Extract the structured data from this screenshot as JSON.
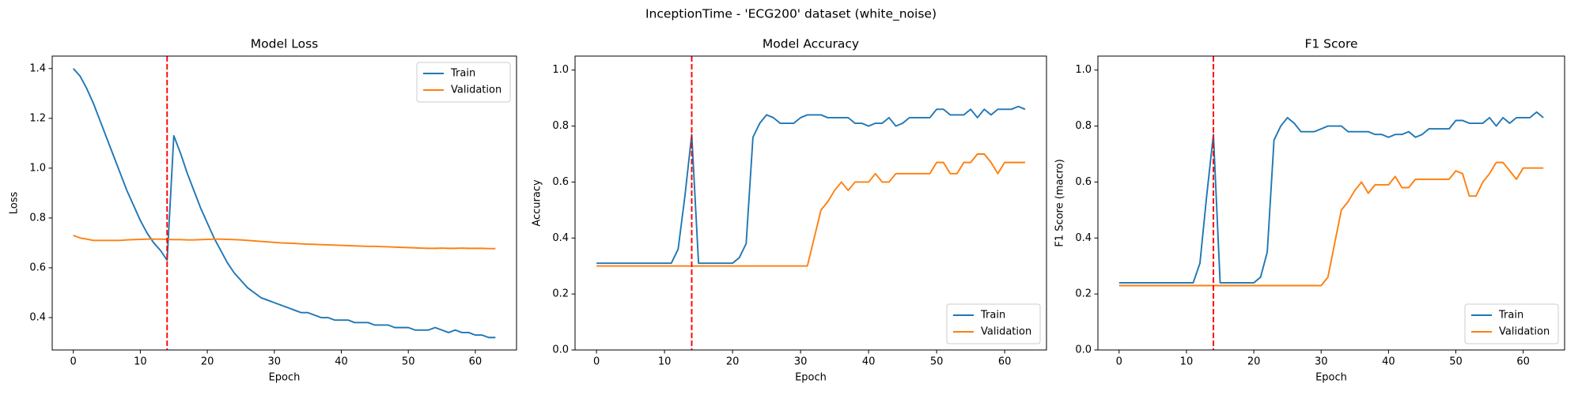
{
  "title": "InceptionTime - 'ECG200' dataset (white_noise)",
  "chart_data": [
    {
      "type": "line",
      "title": "Model Loss",
      "xlabel": "Epoch",
      "ylabel": "Loss",
      "x": [
        0,
        1,
        2,
        3,
        4,
        5,
        6,
        7,
        8,
        9,
        10,
        11,
        12,
        13,
        14,
        15,
        16,
        17,
        18,
        19,
        20,
        21,
        22,
        23,
        24,
        25,
        26,
        27,
        28,
        29,
        30,
        31,
        32,
        33,
        34,
        35,
        36,
        37,
        38,
        39,
        40,
        41,
        42,
        43,
        44,
        45,
        46,
        47,
        48,
        49,
        50,
        51,
        52,
        53,
        54,
        55,
        56,
        57,
        58,
        59,
        60,
        61,
        62,
        63
      ],
      "series": [
        {
          "name": "Train",
          "color": "#1f77b4",
          "values": [
            1.4,
            1.37,
            1.32,
            1.26,
            1.19,
            1.12,
            1.05,
            0.98,
            0.91,
            0.85,
            0.79,
            0.74,
            0.7,
            0.67,
            0.63,
            1.13,
            1.06,
            0.98,
            0.91,
            0.84,
            0.78,
            0.72,
            0.67,
            0.62,
            0.58,
            0.55,
            0.52,
            0.5,
            0.48,
            0.47,
            0.46,
            0.45,
            0.44,
            0.43,
            0.42,
            0.42,
            0.41,
            0.4,
            0.4,
            0.39,
            0.39,
            0.39,
            0.38,
            0.38,
            0.38,
            0.37,
            0.37,
            0.37,
            0.36,
            0.36,
            0.36,
            0.35,
            0.35,
            0.35,
            0.36,
            0.35,
            0.34,
            0.35,
            0.34,
            0.34,
            0.33,
            0.33,
            0.32,
            0.32
          ]
        },
        {
          "name": "Validation",
          "color": "#ff7f0e",
          "values": [
            0.73,
            0.72,
            0.715,
            0.71,
            0.71,
            0.71,
            0.71,
            0.71,
            0.712,
            0.713,
            0.714,
            0.715,
            0.715,
            0.715,
            0.714,
            0.713,
            0.713,
            0.712,
            0.712,
            0.713,
            0.714,
            0.715,
            0.715,
            0.714,
            0.713,
            0.712,
            0.71,
            0.708,
            0.706,
            0.704,
            0.702,
            0.7,
            0.699,
            0.698,
            0.696,
            0.695,
            0.694,
            0.693,
            0.692,
            0.691,
            0.69,
            0.689,
            0.688,
            0.687,
            0.686,
            0.686,
            0.685,
            0.684,
            0.683,
            0.682,
            0.681,
            0.68,
            0.679,
            0.678,
            0.678,
            0.679,
            0.678,
            0.678,
            0.679,
            0.678,
            0.678,
            0.678,
            0.677,
            0.677
          ]
        }
      ],
      "vline": 14,
      "vline_color": "#ff0000",
      "xlim": [
        -3.15,
        66.15
      ],
      "xticks": [
        0,
        10,
        20,
        30,
        40,
        50,
        60
      ],
      "ylim": [
        0.27,
        1.45
      ],
      "yticks": [
        0.4,
        0.6,
        0.8,
        {
          "value": 1,
          "label": "1.0"
        },
        1.2,
        1.4
      ],
      "legend": "upper right"
    },
    {
      "type": "line",
      "title": "Model Accuracy",
      "xlabel": "Epoch",
      "ylabel": "Accuracy",
      "x": [
        0,
        1,
        2,
        3,
        4,
        5,
        6,
        7,
        8,
        9,
        10,
        11,
        12,
        13,
        14,
        15,
        16,
        17,
        18,
        19,
        20,
        21,
        22,
        23,
        24,
        25,
        26,
        27,
        28,
        29,
        30,
        31,
        32,
        33,
        34,
        35,
        36,
        37,
        38,
        39,
        40,
        41,
        42,
        43,
        44,
        45,
        46,
        47,
        48,
        49,
        50,
        51,
        52,
        53,
        54,
        55,
        56,
        57,
        58,
        59,
        60,
        61,
        62,
        63
      ],
      "series": [
        {
          "name": "Train",
          "color": "#1f77b4",
          "values": [
            0.31,
            0.31,
            0.31,
            0.31,
            0.31,
            0.31,
            0.31,
            0.31,
            0.31,
            0.31,
            0.31,
            0.31,
            0.36,
            0.55,
            0.77,
            0.31,
            0.31,
            0.31,
            0.31,
            0.31,
            0.31,
            0.33,
            0.38,
            0.76,
            0.81,
            0.84,
            0.83,
            0.81,
            0.81,
            0.81,
            0.83,
            0.84,
            0.84,
            0.84,
            0.83,
            0.83,
            0.83,
            0.83,
            0.81,
            0.81,
            0.8,
            0.81,
            0.81,
            0.83,
            0.8,
            0.81,
            0.83,
            0.83,
            0.83,
            0.83,
            0.86,
            0.86,
            0.84,
            0.84,
            0.84,
            0.86,
            0.83,
            0.86,
            0.84,
            0.86,
            0.86,
            0.86,
            0.87,
            0.86
          ]
        },
        {
          "name": "Validation",
          "color": "#ff7f0e",
          "values": [
            0.3,
            0.3,
            0.3,
            0.3,
            0.3,
            0.3,
            0.3,
            0.3,
            0.3,
            0.3,
            0.3,
            0.3,
            0.3,
            0.3,
            0.3,
            0.3,
            0.3,
            0.3,
            0.3,
            0.3,
            0.3,
            0.3,
            0.3,
            0.3,
            0.3,
            0.3,
            0.3,
            0.3,
            0.3,
            0.3,
            0.3,
            0.3,
            0.4,
            0.5,
            0.53,
            0.57,
            0.6,
            0.57,
            0.6,
            0.6,
            0.6,
            0.63,
            0.6,
            0.6,
            0.63,
            0.63,
            0.63,
            0.63,
            0.63,
            0.63,
            0.67,
            0.67,
            0.63,
            0.63,
            0.67,
            0.67,
            0.7,
            0.7,
            0.67,
            0.63,
            0.67,
            0.67,
            0.67,
            0.67
          ]
        }
      ],
      "vline": 14,
      "vline_color": "#ff0000",
      "xlim": [
        -3.15,
        66.15
      ],
      "xticks": [
        0,
        10,
        20,
        30,
        40,
        50,
        60
      ],
      "ylim": [
        0,
        1.05
      ],
      "yticks": [
        {
          "value": 0,
          "label": "0.0"
        },
        0.2,
        0.4,
        0.6,
        0.8,
        {
          "value": 1,
          "label": "1.0"
        }
      ],
      "legend": "lower right"
    },
    {
      "type": "line",
      "title": "F1 Score",
      "xlabel": "Epoch",
      "ylabel": "F1 Score (macro)",
      "x": [
        0,
        1,
        2,
        3,
        4,
        5,
        6,
        7,
        8,
        9,
        10,
        11,
        12,
        13,
        14,
        15,
        16,
        17,
        18,
        19,
        20,
        21,
        22,
        23,
        24,
        25,
        26,
        27,
        28,
        29,
        30,
        31,
        32,
        33,
        34,
        35,
        36,
        37,
        38,
        39,
        40,
        41,
        42,
        43,
        44,
        45,
        46,
        47,
        48,
        49,
        50,
        51,
        52,
        53,
        54,
        55,
        56,
        57,
        58,
        59,
        60,
        61,
        62,
        63
      ],
      "series": [
        {
          "name": "Train",
          "color": "#1f77b4",
          "values": [
            0.24,
            0.24,
            0.24,
            0.24,
            0.24,
            0.24,
            0.24,
            0.24,
            0.24,
            0.24,
            0.24,
            0.24,
            0.31,
            0.55,
            0.77,
            0.24,
            0.24,
            0.24,
            0.24,
            0.24,
            0.24,
            0.26,
            0.35,
            0.75,
            0.8,
            0.83,
            0.81,
            0.78,
            0.78,
            0.78,
            0.79,
            0.8,
            0.8,
            0.8,
            0.78,
            0.78,
            0.78,
            0.78,
            0.77,
            0.77,
            0.76,
            0.77,
            0.77,
            0.78,
            0.76,
            0.77,
            0.79,
            0.79,
            0.79,
            0.79,
            0.82,
            0.82,
            0.81,
            0.81,
            0.81,
            0.83,
            0.8,
            0.83,
            0.81,
            0.83,
            0.83,
            0.83,
            0.85,
            0.83
          ]
        },
        {
          "name": "Validation",
          "color": "#ff7f0e",
          "values": [
            0.23,
            0.23,
            0.23,
            0.23,
            0.23,
            0.23,
            0.23,
            0.23,
            0.23,
            0.23,
            0.23,
            0.23,
            0.23,
            0.23,
            0.23,
            0.23,
            0.23,
            0.23,
            0.23,
            0.23,
            0.23,
            0.23,
            0.23,
            0.23,
            0.23,
            0.23,
            0.23,
            0.23,
            0.23,
            0.23,
            0.23,
            0.26,
            0.38,
            0.5,
            0.53,
            0.57,
            0.6,
            0.56,
            0.59,
            0.59,
            0.59,
            0.62,
            0.58,
            0.58,
            0.61,
            0.61,
            0.61,
            0.61,
            0.61,
            0.61,
            0.64,
            0.63,
            0.55,
            0.55,
            0.6,
            0.63,
            0.67,
            0.67,
            0.64,
            0.61,
            0.65,
            0.65,
            0.65,
            0.65
          ]
        }
      ],
      "vline": 14,
      "vline_color": "#ff0000",
      "xlim": [
        -3.15,
        66.15
      ],
      "xticks": [
        0,
        10,
        20,
        30,
        40,
        50,
        60
      ],
      "ylim": [
        0,
        1.05
      ],
      "yticks": [
        {
          "value": 0,
          "label": "0.0"
        },
        0.2,
        0.4,
        0.6,
        0.8,
        {
          "value": 1,
          "label": "1.0"
        }
      ],
      "legend": "lower right"
    }
  ]
}
